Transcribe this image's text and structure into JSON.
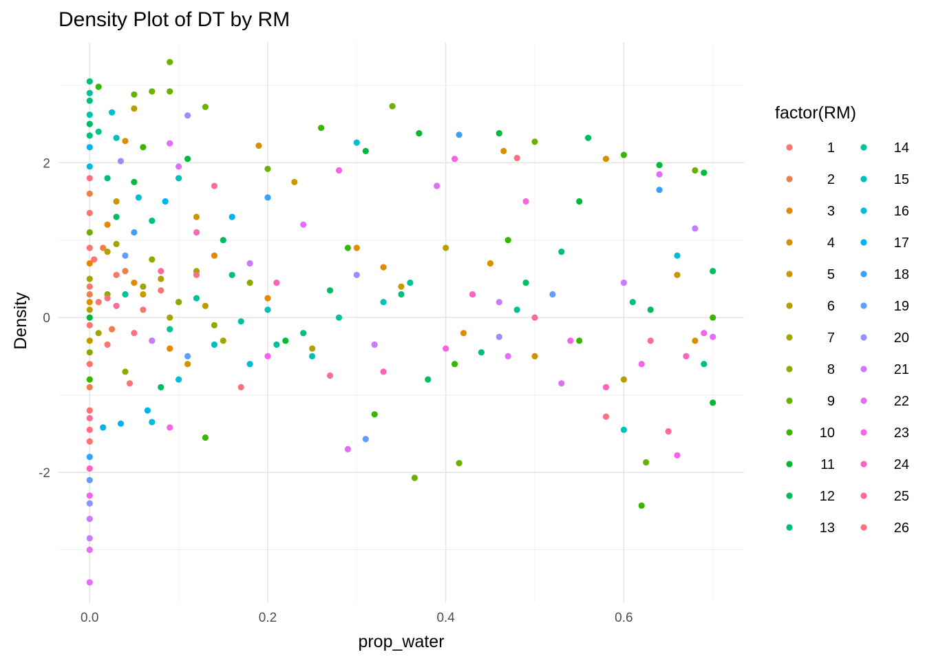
{
  "chart_data": {
    "type": "scatter",
    "title": "Density Plot of DT by RM",
    "xlabel": "prop_water",
    "ylabel": "Density",
    "xlim": [
      -0.035,
      0.735
    ],
    "ylim": [
      -3.68,
      3.55
    ],
    "x_ticks": [
      0.0,
      0.2,
      0.4,
      0.6
    ],
    "x_tick_labels": [
      "0.0",
      "0.2",
      "0.4",
      "0.6"
    ],
    "x_minor_ticks": [
      0.1,
      0.3,
      0.5,
      0.7
    ],
    "y_ticks": [
      -2,
      0,
      2
    ],
    "y_tick_labels": [
      "-2",
      "0",
      "2"
    ],
    "y_minor_ticks": [
      -3,
      -1,
      1,
      3
    ],
    "grid": true,
    "legend": {
      "title": "factor(RM)",
      "placement": "right",
      "columns": 2,
      "entries": [
        "1",
        "2",
        "3",
        "4",
        "5",
        "6",
        "7",
        "8",
        "9",
        "10",
        "11",
        "12",
        "13",
        "14",
        "15",
        "16",
        "17",
        "18",
        "19",
        "20",
        "21",
        "22",
        "23",
        "24",
        "25",
        "26"
      ]
    },
    "series_colors": [
      "#F8766D",
      "#EF7F49",
      "#E58700",
      "#D89000",
      "#C99800",
      "#B79F00",
      "#A3A500",
      "#8BAB00",
      "#6BB100",
      "#39B600",
      "#00BA38",
      "#00BD5F",
      "#00BF7D",
      "#00C19A",
      "#00C0B7",
      "#00BCD6",
      "#00B4EF",
      "#35A2FF",
      "#619CFF",
      "#9590FF",
      "#C77CFF",
      "#E26EF7",
      "#F564E3",
      "#FF62BC",
      "#FF6C91",
      "#FC717F"
    ],
    "point_count_approx": 5200,
    "series": [
      {
        "name": "1",
        "points": [
          [
            0.0,
            1.35
          ],
          [
            0.0,
            0.9
          ],
          [
            0.0,
            0.4
          ],
          [
            0.0,
            -0.1
          ],
          [
            0.0,
            -0.6
          ],
          [
            0.0,
            -1.2
          ],
          [
            0.0,
            -1.6
          ],
          [
            0.005,
            0.75
          ],
          [
            0.01,
            0.2
          ],
          [
            0.02,
            -0.35
          ],
          [
            0.03,
            0.55
          ],
          [
            0.045,
            -0.85
          ],
          [
            0.06,
            0.1
          ],
          [
            0.08,
            0.35
          ]
        ]
      },
      {
        "name": "2",
        "points": [
          [
            0.0,
            1.6
          ],
          [
            0.0,
            0.3
          ],
          [
            0.0,
            -0.9
          ],
          [
            0.015,
            0.9
          ],
          [
            0.025,
            -0.15
          ],
          [
            0.04,
            0.6
          ],
          [
            0.07,
            -0.3
          ],
          [
            0.1,
            0.2
          ]
        ]
      },
      {
        "name": "3",
        "points": [
          [
            0.0,
            0.7
          ],
          [
            0.02,
            1.2
          ],
          [
            0.05,
            0.45
          ],
          [
            0.09,
            -0.4
          ],
          [
            0.14,
            0.8
          ],
          [
            0.2,
            0.25
          ],
          [
            0.33,
            0.65
          ],
          [
            0.42,
            -0.2
          ]
        ]
      },
      {
        "name": "4",
        "points": [
          [
            0.0,
            0.2
          ],
          [
            0.04,
            2.28
          ],
          [
            0.12,
            1.3
          ],
          [
            0.19,
            2.22
          ],
          [
            0.3,
            0.9
          ],
          [
            0.45,
            0.7
          ],
          [
            0.465,
            2.15
          ],
          [
            0.58,
            2.05
          ],
          [
            0.68,
            -0.3
          ]
        ]
      },
      {
        "name": "5",
        "points": [
          [
            0.0,
            -0.3
          ],
          [
            0.03,
            1.5
          ],
          [
            0.06,
            0.3
          ],
          [
            0.11,
            -0.6
          ],
          [
            0.23,
            1.75
          ],
          [
            0.35,
            0.4
          ],
          [
            0.5,
            -0.5
          ],
          [
            0.66,
            0.55
          ]
        ]
      },
      {
        "name": "6",
        "points": [
          [
            0.0,
            0.1
          ],
          [
            0.02,
            0.85
          ],
          [
            0.05,
            2.7
          ],
          [
            0.08,
            0.5
          ],
          [
            0.13,
            0.15
          ],
          [
            0.25,
            -0.4
          ],
          [
            0.4,
            0.9
          ],
          [
            0.6,
            -0.8
          ]
        ]
      },
      {
        "name": "7",
        "points": [
          [
            0.0,
            0.5
          ],
          [
            0.01,
            -0.2
          ],
          [
            0.03,
            0.95
          ],
          [
            0.06,
            0.4
          ],
          [
            0.09,
            0.0
          ],
          [
            0.12,
            0.6
          ],
          [
            0.15,
            -0.3
          ]
        ]
      },
      {
        "name": "8",
        "points": [
          [
            0.0,
            -0.45
          ],
          [
            0.02,
            0.3
          ],
          [
            0.04,
            -0.7
          ],
          [
            0.07,
            0.75
          ],
          [
            0.1,
            0.2
          ],
          [
            0.14,
            -0.1
          ],
          [
            0.18,
            0.45
          ]
        ]
      },
      {
        "name": "9",
        "points": [
          [
            0.0,
            1.1
          ],
          [
            0.05,
            2.88
          ],
          [
            0.07,
            2.92
          ],
          [
            0.09,
            3.3
          ],
          [
            0.09,
            2.92
          ],
          [
            0.13,
            2.72
          ],
          [
            0.2,
            1.92
          ],
          [
            0.34,
            2.73
          ],
          [
            0.365,
            -2.07
          ],
          [
            0.415,
            -1.88
          ],
          [
            0.5,
            2.27
          ],
          [
            0.625,
            -1.87
          ],
          [
            0.68,
            1.9
          ]
        ]
      },
      {
        "name": "10",
        "points": [
          [
            0.0,
            -0.8
          ],
          [
            0.01,
            2.98
          ],
          [
            0.06,
            2.2
          ],
          [
            0.13,
            -1.55
          ],
          [
            0.26,
            2.45
          ],
          [
            0.29,
            0.9
          ],
          [
            0.32,
            -1.25
          ],
          [
            0.41,
            -0.6
          ],
          [
            0.47,
            1.0
          ],
          [
            0.55,
            -0.3
          ],
          [
            0.6,
            2.1
          ],
          [
            0.62,
            -2.43
          ],
          [
            0.7,
            0.0
          ]
        ]
      },
      {
        "name": "11",
        "points": [
          [
            0.0,
            0.0
          ],
          [
            0.05,
            1.75
          ],
          [
            0.11,
            2.05
          ],
          [
            0.22,
            -0.3
          ],
          [
            0.31,
            2.15
          ],
          [
            0.37,
            2.38
          ],
          [
            0.46,
            2.38
          ],
          [
            0.55,
            1.5
          ],
          [
            0.64,
            1.97
          ],
          [
            0.69,
            1.87
          ],
          [
            0.7,
            -1.1
          ]
        ]
      },
      {
        "name": "12",
        "points": [
          [
            0.0,
            2.5
          ],
          [
            0.03,
            1.3
          ],
          [
            0.08,
            -0.9
          ],
          [
            0.15,
            1.0
          ],
          [
            0.27,
            0.35
          ],
          [
            0.38,
            -0.8
          ],
          [
            0.49,
            0.45
          ],
          [
            0.56,
            2.32
          ],
          [
            0.63,
            0.1
          ],
          [
            0.7,
            0.6
          ]
        ]
      },
      {
        "name": "13",
        "points": [
          [
            0.0,
            3.05
          ],
          [
            0.0,
            2.8
          ],
          [
            0.0,
            2.35
          ],
          [
            0.02,
            1.8
          ],
          [
            0.07,
            1.25
          ],
          [
            0.16,
            0.55
          ],
          [
            0.24,
            -0.2
          ],
          [
            0.35,
            0.3
          ],
          [
            0.44,
            -0.45
          ],
          [
            0.53,
            0.85
          ],
          [
            0.61,
            0.2
          ],
          [
            0.69,
            -0.6
          ]
        ]
      },
      {
        "name": "14",
        "points": [
          [
            0.0,
            2.9
          ],
          [
            0.01,
            2.4
          ],
          [
            0.04,
            0.3
          ],
          [
            0.09,
            -0.15
          ],
          [
            0.12,
            0.25
          ],
          [
            0.17,
            -0.05
          ],
          [
            0.21,
            -0.35
          ],
          [
            0.28,
            0.0
          ],
          [
            0.36,
            0.45
          ],
          [
            0.48,
            0.1
          ]
        ]
      },
      {
        "name": "15",
        "points": [
          [
            0.0,
            2.62
          ],
          [
            0.03,
            2.32
          ],
          [
            0.1,
            1.8
          ],
          [
            0.14,
            -0.35
          ],
          [
            0.2,
            0.1
          ],
          [
            0.25,
            -0.5
          ],
          [
            0.33,
            0.2
          ],
          [
            0.6,
            -1.45
          ]
        ]
      },
      {
        "name": "16",
        "points": [
          [
            0.0,
            1.95
          ],
          [
            0.025,
            2.65
          ],
          [
            0.055,
            1.55
          ],
          [
            0.07,
            -1.35
          ],
          [
            0.1,
            -0.8
          ],
          [
            0.18,
            -0.6
          ],
          [
            0.3,
            2.26
          ],
          [
            0.66,
            0.8
          ]
        ]
      },
      {
        "name": "17",
        "points": [
          [
            0.0,
            2.2
          ],
          [
            0.015,
            -1.42
          ],
          [
            0.035,
            -1.37
          ],
          [
            0.065,
            -1.2
          ],
          [
            0.085,
            1.5
          ],
          [
            0.16,
            1.3
          ]
        ]
      },
      {
        "name": "18",
        "points": [
          [
            0.0,
            -1.8
          ],
          [
            0.05,
            1.1
          ],
          [
            0.2,
            1.55
          ],
          [
            0.415,
            2.36
          ],
          [
            0.64,
            1.65
          ]
        ]
      },
      {
        "name": "19",
        "points": [
          [
            0.0,
            -2.1
          ],
          [
            0.04,
            0.8
          ],
          [
            0.11,
            -0.5
          ],
          [
            0.31,
            -1.57
          ],
          [
            0.52,
            0.3
          ]
        ]
      },
      {
        "name": "20",
        "points": [
          [
            0.0,
            -2.4
          ],
          [
            0.035,
            2.02
          ],
          [
            0.11,
            2.61
          ],
          [
            0.3,
            0.55
          ],
          [
            0.46,
            -0.25
          ]
        ]
      },
      {
        "name": "21",
        "points": [
          [
            0.0,
            -2.6
          ],
          [
            0.0,
            -2.85
          ],
          [
            0.07,
            -0.3
          ],
          [
            0.18,
            0.7
          ],
          [
            0.32,
            -0.35
          ],
          [
            0.46,
            0.2
          ],
          [
            0.6,
            0.45
          ],
          [
            0.68,
            1.15
          ]
        ]
      },
      {
        "name": "22",
        "points": [
          [
            0.0,
            -3.0
          ],
          [
            0.0,
            -3.42
          ],
          [
            0.09,
            2.25
          ],
          [
            0.1,
            1.95
          ],
          [
            0.24,
            1.2
          ],
          [
            0.29,
            -1.7
          ],
          [
            0.39,
            1.7
          ],
          [
            0.47,
            -0.5
          ],
          [
            0.53,
            -0.85
          ],
          [
            0.64,
            1.85
          ],
          [
            0.7,
            -0.25
          ]
        ]
      },
      {
        "name": "23",
        "points": [
          [
            0.0,
            -2.3
          ],
          [
            0.09,
            -1.42
          ],
          [
            0.2,
            -0.5
          ],
          [
            0.28,
            1.9
          ],
          [
            0.4,
            -0.4
          ],
          [
            0.41,
            2.05
          ],
          [
            0.49,
            1.5
          ],
          [
            0.54,
            -0.3
          ],
          [
            0.62,
            -0.6
          ],
          [
            0.66,
            -1.78
          ],
          [
            0.69,
            -0.2
          ]
        ]
      },
      {
        "name": "24",
        "points": [
          [
            0.0,
            -1.95
          ],
          [
            0.12,
            1.1
          ],
          [
            0.21,
            0.45
          ],
          [
            0.33,
            -0.7
          ],
          [
            0.43,
            0.3
          ],
          [
            0.58,
            -0.9
          ],
          [
            0.67,
            -0.5
          ]
        ]
      },
      {
        "name": "25",
        "points": [
          [
            0.0,
            -1.3
          ],
          [
            0.03,
            0.15
          ],
          [
            0.08,
            0.6
          ],
          [
            0.14,
            1.7
          ],
          [
            0.27,
            -0.75
          ],
          [
            0.5,
            0.0
          ],
          [
            0.63,
            -0.3
          ],
          [
            0.65,
            -1.47
          ]
        ]
      },
      {
        "name": "26",
        "points": [
          [
            0.0,
            1.8
          ],
          [
            0.0,
            -1.45
          ],
          [
            0.02,
            0.25
          ],
          [
            0.05,
            -0.2
          ],
          [
            0.12,
            0.55
          ],
          [
            0.17,
            -0.9
          ],
          [
            0.48,
            2.06
          ],
          [
            0.58,
            -1.28
          ]
        ]
      }
    ]
  }
}
